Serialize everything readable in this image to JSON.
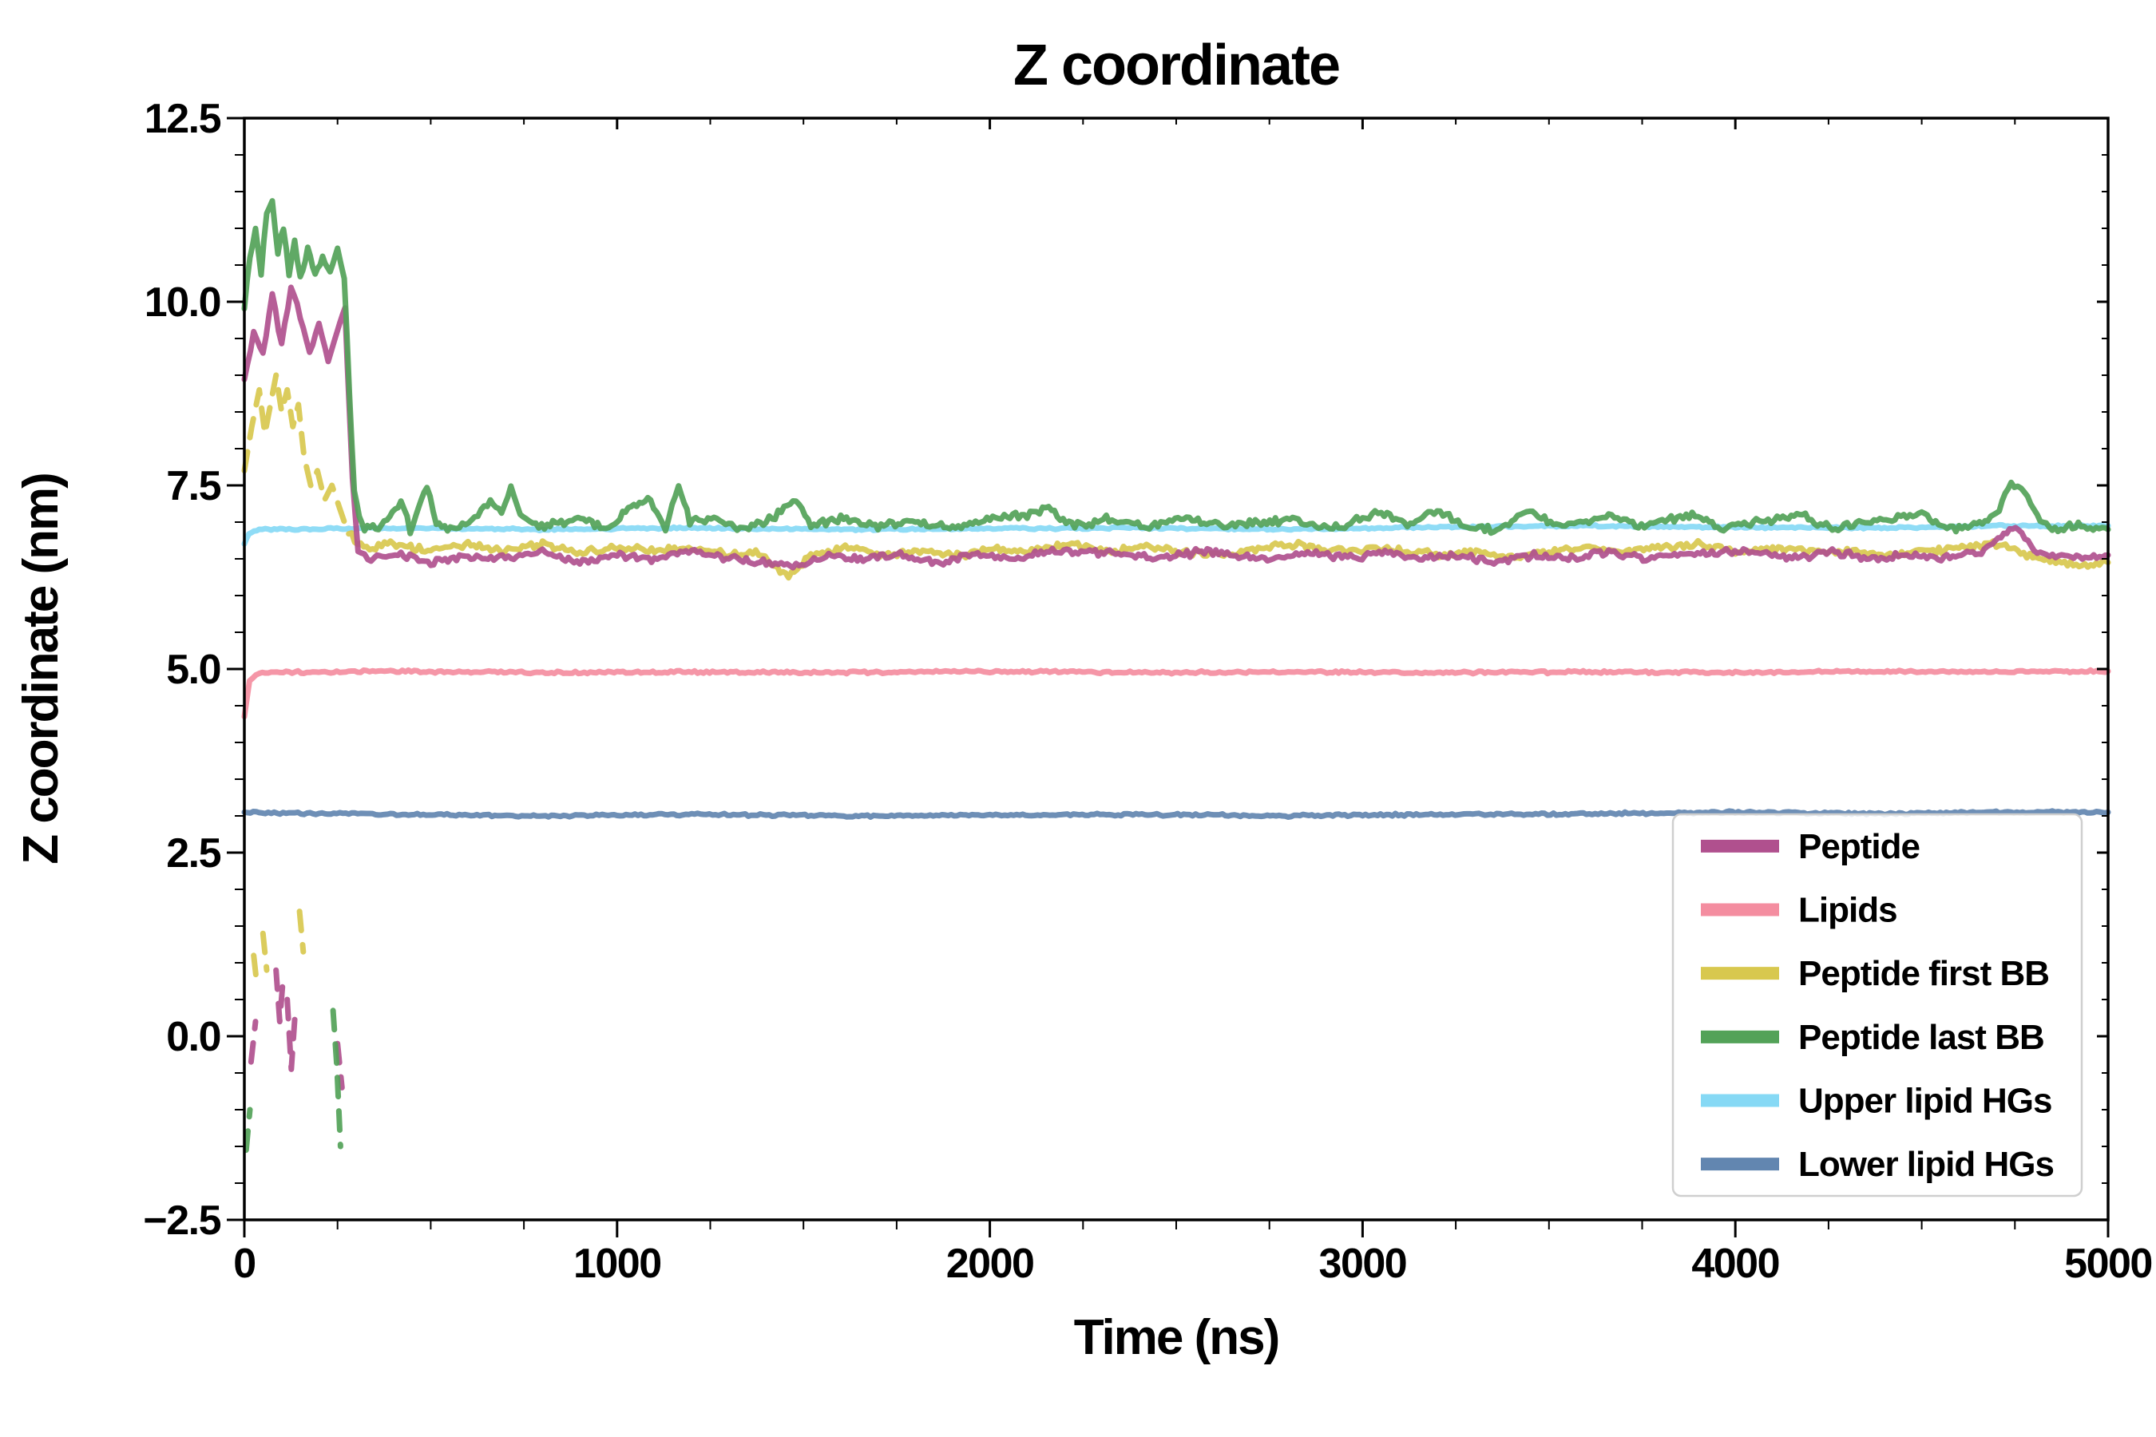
{
  "figure": {
    "background": "#ffffff"
  },
  "chart_data": {
    "type": "line",
    "title": "Z coordinate",
    "xlabel": "Time (ns)",
    "ylabel": "Z coordinate (nm)",
    "xlim": [
      0,
      5000
    ],
    "ylim": [
      -2.5,
      12.5
    ],
    "grid": false,
    "x_ticks": {
      "values": [
        0,
        1000,
        2000,
        3000,
        4000,
        5000
      ],
      "labels": [
        "0",
        "1000",
        "2000",
        "3000",
        "4000",
        "5000"
      ],
      "minor_step": 250
    },
    "y_ticks": {
      "values": [
        -2.5,
        0.0,
        2.5,
        5.0,
        7.5,
        10.0,
        12.5
      ],
      "labels": [
        "−2.5",
        "0.0",
        "2.5",
        "5.0",
        "7.5",
        "10.0",
        "12.5"
      ],
      "minor_step": 0.5
    },
    "legend": {
      "position": "lower right",
      "background": "#ffffff",
      "border_color": "#cfcfcf"
    },
    "draw_order": [
      5,
      4,
      1,
      2,
      0,
      3
    ],
    "series": [
      {
        "name": "Peptide",
        "color": "#b0508e",
        "width": 7,
        "noise": 0.07,
        "points": [
          [
            0,
            8.9
          ],
          [
            25,
            9.6
          ],
          [
            50,
            9.3
          ],
          [
            75,
            10.1
          ],
          [
            100,
            9.4
          ],
          [
            125,
            10.2
          ],
          [
            150,
            9.8
          ],
          [
            175,
            9.3
          ],
          [
            200,
            9.7
          ],
          [
            225,
            9.2
          ],
          [
            250,
            9.6
          ],
          [
            270,
            9.9
          ],
          [
            290,
            7.6
          ],
          [
            305,
            6.6
          ],
          [
            340,
            6.5
          ],
          [
            420,
            6.55
          ],
          [
            500,
            6.45
          ],
          [
            600,
            6.55
          ],
          [
            700,
            6.5
          ],
          [
            800,
            6.6
          ],
          [
            900,
            6.45
          ],
          [
            1000,
            6.55
          ],
          [
            1100,
            6.5
          ],
          [
            1200,
            6.6
          ],
          [
            1300,
            6.5
          ],
          [
            1400,
            6.45
          ],
          [
            1480,
            6.4
          ],
          [
            1560,
            6.55
          ],
          [
            1660,
            6.5
          ],
          [
            1760,
            6.55
          ],
          [
            1860,
            6.45
          ],
          [
            1960,
            6.55
          ],
          [
            2060,
            6.5
          ],
          [
            2160,
            6.6
          ],
          [
            2260,
            6.6
          ],
          [
            2360,
            6.55
          ],
          [
            2460,
            6.5
          ],
          [
            2560,
            6.6
          ],
          [
            2660,
            6.55
          ],
          [
            2760,
            6.5
          ],
          [
            2860,
            6.6
          ],
          [
            2960,
            6.5
          ],
          [
            3060,
            6.6
          ],
          [
            3160,
            6.5
          ],
          [
            3260,
            6.55
          ],
          [
            3360,
            6.45
          ],
          [
            3460,
            6.55
          ],
          [
            3560,
            6.5
          ],
          [
            3660,
            6.6
          ],
          [
            3760,
            6.5
          ],
          [
            3860,
            6.55
          ],
          [
            3960,
            6.6
          ],
          [
            4060,
            6.6
          ],
          [
            4160,
            6.5
          ],
          [
            4260,
            6.6
          ],
          [
            4360,
            6.5
          ],
          [
            4460,
            6.55
          ],
          [
            4560,
            6.5
          ],
          [
            4660,
            6.6
          ],
          [
            4720,
            6.85
          ],
          [
            4760,
            6.9
          ],
          [
            4810,
            6.6
          ],
          [
            4900,
            6.5
          ],
          [
            5000,
            6.55
          ]
        ],
        "dashed_segments": [
          [
            [
              18,
              -0.35
            ],
            [
              30,
              0.2
            ]
          ],
          [
            [
              85,
              0.9
            ],
            [
              95,
              0.2
            ],
            [
              105,
              0.85
            ]
          ],
          [
            [
              115,
              0.5
            ],
            [
              126,
              -0.45
            ],
            [
              136,
              0.3
            ]
          ],
          [
            [
              250,
              -0.1
            ],
            [
              262,
              -0.7
            ]
          ]
        ]
      },
      {
        "name": "Lipids",
        "color": "#f48da0",
        "width": 7,
        "noise": 0.025,
        "points": [
          [
            0,
            4.35
          ],
          [
            14,
            4.85
          ],
          [
            40,
            4.95
          ],
          [
            400,
            4.97
          ],
          [
            800,
            4.95
          ],
          [
            1200,
            4.96
          ],
          [
            1600,
            4.95
          ],
          [
            2000,
            4.97
          ],
          [
            2400,
            4.95
          ],
          [
            2800,
            4.96
          ],
          [
            3200,
            4.95
          ],
          [
            3600,
            4.96
          ],
          [
            4000,
            4.95
          ],
          [
            4400,
            4.97
          ],
          [
            4700,
            4.96
          ],
          [
            5000,
            4.97
          ]
        ]
      },
      {
        "name": "Peptide first BB",
        "color": "#d8c84e",
        "width": 7,
        "noise": 0.07,
        "points": [
          [
            280,
            6.85
          ],
          [
            320,
            6.65
          ],
          [
            400,
            6.7
          ],
          [
            500,
            6.6
          ],
          [
            600,
            6.7
          ],
          [
            700,
            6.6
          ],
          [
            800,
            6.7
          ],
          [
            900,
            6.6
          ],
          [
            1000,
            6.65
          ],
          [
            1100,
            6.6
          ],
          [
            1200,
            6.65
          ],
          [
            1300,
            6.55
          ],
          [
            1380,
            6.6
          ],
          [
            1430,
            6.35
          ],
          [
            1460,
            6.25
          ],
          [
            1520,
            6.55
          ],
          [
            1620,
            6.65
          ],
          [
            1720,
            6.55
          ],
          [
            1820,
            6.6
          ],
          [
            1920,
            6.55
          ],
          [
            2020,
            6.65
          ],
          [
            2120,
            6.6
          ],
          [
            2220,
            6.7
          ],
          [
            2320,
            6.6
          ],
          [
            2420,
            6.65
          ],
          [
            2520,
            6.6
          ],
          [
            2620,
            6.55
          ],
          [
            2720,
            6.65
          ],
          [
            2820,
            6.7
          ],
          [
            2920,
            6.6
          ],
          [
            3020,
            6.65
          ],
          [
            3120,
            6.6
          ],
          [
            3220,
            6.55
          ],
          [
            3320,
            6.6
          ],
          [
            3400,
            6.5
          ],
          [
            3500,
            6.6
          ],
          [
            3600,
            6.65
          ],
          [
            3700,
            6.6
          ],
          [
            3800,
            6.65
          ],
          [
            3900,
            6.7
          ],
          [
            4000,
            6.6
          ],
          [
            4100,
            6.65
          ],
          [
            4200,
            6.6
          ],
          [
            4300,
            6.6
          ],
          [
            4400,
            6.55
          ],
          [
            4500,
            6.6
          ],
          [
            4600,
            6.65
          ],
          [
            4700,
            6.7
          ],
          [
            4790,
            6.55
          ],
          [
            4860,
            6.45
          ],
          [
            4930,
            6.4
          ],
          [
            5000,
            6.45
          ]
        ],
        "dashed_segments": [
          [
            [
              0,
              7.7
            ],
            [
              20,
              8.3
            ],
            [
              40,
              8.8
            ],
            [
              55,
              8.2
            ],
            [
              70,
              8.6
            ],
            [
              85,
              9.0
            ],
            [
              100,
              8.5
            ],
            [
              115,
              8.8
            ],
            [
              130,
              8.3
            ],
            [
              145,
              8.6
            ],
            [
              160,
              7.9
            ],
            [
              178,
              7.5
            ],
            [
              196,
              7.7
            ],
            [
              215,
              7.3
            ],
            [
              235,
              7.5
            ],
            [
              255,
              7.2
            ],
            [
              275,
              6.9
            ]
          ],
          [
            [
              25,
              1.1
            ],
            [
              35,
              0.65
            ]
          ],
          [
            [
              50,
              1.4
            ],
            [
              60,
              0.9
            ]
          ],
          [
            [
              148,
              1.7
            ],
            [
              158,
              1.15
            ]
          ]
        ]
      },
      {
        "name": "Peptide last BB",
        "color": "#53a258",
        "width": 7,
        "noise": 0.08,
        "points": [
          [
            0,
            9.9
          ],
          [
            15,
            10.6
          ],
          [
            30,
            11.0
          ],
          [
            45,
            10.4
          ],
          [
            60,
            11.2
          ],
          [
            75,
            11.4
          ],
          [
            90,
            10.7
          ],
          [
            105,
            11.0
          ],
          [
            120,
            10.4
          ],
          [
            135,
            10.8
          ],
          [
            150,
            10.3
          ],
          [
            170,
            10.7
          ],
          [
            190,
            10.4
          ],
          [
            210,
            10.6
          ],
          [
            230,
            10.4
          ],
          [
            250,
            10.7
          ],
          [
            268,
            10.3
          ],
          [
            282,
            8.8
          ],
          [
            295,
            7.4
          ],
          [
            315,
            6.95
          ],
          [
            360,
            6.9
          ],
          [
            420,
            7.3
          ],
          [
            445,
            6.9
          ],
          [
            490,
            7.5
          ],
          [
            515,
            7.0
          ],
          [
            560,
            6.9
          ],
          [
            610,
            7.0
          ],
          [
            660,
            7.3
          ],
          [
            690,
            7.1
          ],
          [
            715,
            7.5
          ],
          [
            740,
            7.1
          ],
          [
            790,
            6.95
          ],
          [
            850,
            7.0
          ],
          [
            910,
            7.05
          ],
          [
            970,
            6.9
          ],
          [
            1030,
            7.2
          ],
          [
            1090,
            7.3
          ],
          [
            1130,
            6.9
          ],
          [
            1165,
            7.5
          ],
          [
            1195,
            7.0
          ],
          [
            1260,
            7.05
          ],
          [
            1330,
            6.9
          ],
          [
            1400,
            7.0
          ],
          [
            1480,
            7.3
          ],
          [
            1520,
            6.95
          ],
          [
            1600,
            7.05
          ],
          [
            1700,
            6.95
          ],
          [
            1800,
            7.0
          ],
          [
            1900,
            6.9
          ],
          [
            2000,
            7.05
          ],
          [
            2100,
            7.1
          ],
          [
            2150,
            7.2
          ],
          [
            2220,
            6.95
          ],
          [
            2320,
            7.05
          ],
          [
            2420,
            6.95
          ],
          [
            2520,
            7.05
          ],
          [
            2620,
            6.95
          ],
          [
            2720,
            7.0
          ],
          [
            2820,
            7.05
          ],
          [
            2920,
            6.9
          ],
          [
            3000,
            7.05
          ],
          [
            3050,
            7.15
          ],
          [
            3120,
            6.95
          ],
          [
            3200,
            7.15
          ],
          [
            3280,
            6.95
          ],
          [
            3360,
            6.9
          ],
          [
            3440,
            7.15
          ],
          [
            3520,
            6.95
          ],
          [
            3600,
            7.0
          ],
          [
            3660,
            7.1
          ],
          [
            3740,
            6.95
          ],
          [
            3820,
            7.05
          ],
          [
            3900,
            7.1
          ],
          [
            3960,
            6.9
          ],
          [
            4040,
            7.0
          ],
          [
            4120,
            7.05
          ],
          [
            4180,
            7.1
          ],
          [
            4260,
            6.9
          ],
          [
            4340,
            7.0
          ],
          [
            4420,
            7.05
          ],
          [
            4500,
            7.1
          ],
          [
            4560,
            6.9
          ],
          [
            4640,
            6.95
          ],
          [
            4700,
            7.1
          ],
          [
            4740,
            7.55
          ],
          [
            4775,
            7.45
          ],
          [
            4810,
            7.1
          ],
          [
            4850,
            6.9
          ],
          [
            4920,
            6.95
          ],
          [
            5000,
            6.9
          ]
        ],
        "dashed_segments": [
          [
            [
              5,
              -1.55
            ],
            [
              15,
              -1.0
            ]
          ],
          [
            [
              238,
              0.35
            ],
            [
              248,
              -0.4
            ],
            [
              258,
              -1.5
            ]
          ]
        ]
      },
      {
        "name": "Upper lipid HGs",
        "color": "#86d9f5",
        "width": 7,
        "noise": 0.02,
        "points": [
          [
            0,
            6.7
          ],
          [
            12,
            6.85
          ],
          [
            40,
            6.9
          ],
          [
            400,
            6.92
          ],
          [
            800,
            6.9
          ],
          [
            1200,
            6.92
          ],
          [
            1600,
            6.9
          ],
          [
            2000,
            6.91
          ],
          [
            2400,
            6.92
          ],
          [
            2800,
            6.9
          ],
          [
            3200,
            6.93
          ],
          [
            3600,
            6.95
          ],
          [
            4000,
            6.93
          ],
          [
            4400,
            6.92
          ],
          [
            4700,
            6.95
          ],
          [
            5000,
            6.95
          ]
        ]
      },
      {
        "name": "Lower lipid HGs",
        "color": "#6286b0",
        "width": 7,
        "noise": 0.025,
        "points": [
          [
            0,
            3.05
          ],
          [
            400,
            3.02
          ],
          [
            800,
            3.0
          ],
          [
            1200,
            3.02
          ],
          [
            1600,
            3.0
          ],
          [
            2000,
            3.01
          ],
          [
            2400,
            3.02
          ],
          [
            2800,
            3.0
          ],
          [
            3200,
            3.02
          ],
          [
            3600,
            3.03
          ],
          [
            4000,
            3.05
          ],
          [
            4400,
            3.03
          ],
          [
            4700,
            3.05
          ],
          [
            5000,
            3.05
          ]
        ]
      }
    ]
  }
}
